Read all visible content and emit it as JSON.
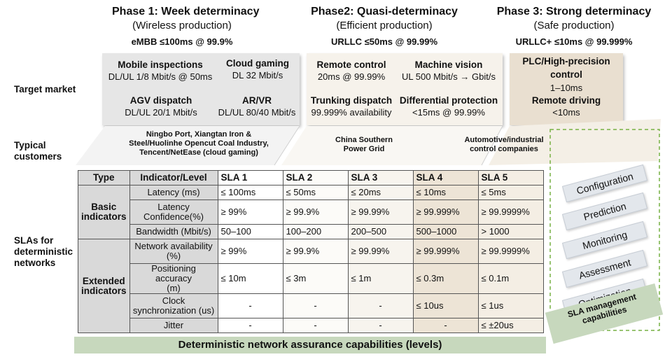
{
  "phases": [
    {
      "title": "Phase 1: Week determinacy",
      "subtitle": "(Wireless production)",
      "requirement": "eMBB ≤100ms @ 99.9%"
    },
    {
      "title": "Phase2: Quasi-determinacy",
      "subtitle": "(Efficient production)",
      "requirement": "URLLC ≤50ms @ 99.99%"
    },
    {
      "title": "Phase 3: Strong determinacy",
      "subtitle": "(Safe production)",
      "requirement": "URLLC+ ≤10ms @ 99.999%"
    }
  ],
  "row_labels": {
    "target_market": "Target market",
    "typical_customers_1": "Typical",
    "typical_customers_2": "customers",
    "slas_1": "SLAs for",
    "slas_2": "deterministic",
    "slas_3": "networks"
  },
  "markets": {
    "phase1": [
      {
        "name": "Mobile inspections",
        "value": "DL/UL 1/8 Mbit/s @ 50ms"
      },
      {
        "name": "Cloud gaming",
        "value": "DL 32 Mbit/s"
      },
      {
        "name": "AGV dispatch",
        "value": "DL/UL 20/1 Mbit/s"
      },
      {
        "name": "AR/VR",
        "value": "DL/UL 80/40 Mbit/s"
      }
    ],
    "phase2": [
      {
        "name": "Remote control",
        "value": "20ms @ 99.99%"
      },
      {
        "name": "Machine vision",
        "value": "UL 500 Mbit/s → Gbit/s"
      },
      {
        "name": "Trunking dispatch",
        "value": "99.999% availability"
      },
      {
        "name": "Differential protection",
        "value": "<15ms @ 99.99%"
      }
    ],
    "phase3": [
      {
        "name_1": "PLC/High-precision",
        "name_2": "control",
        "value": "1–10ms"
      },
      {
        "name": "Remote driving",
        "value": "<10ms"
      }
    ]
  },
  "customers": {
    "phase1_1": "Ningbo Port, Xiangtan Iron &",
    "phase1_2": "Steel/Huolinhe Opencut Coal Industry,",
    "phase1_3": "Tencent/NetEase (cloud gaming)",
    "phase2_1": "China Southern",
    "phase2_2": "Power Grid",
    "phase3_1": "Automotive/industrial",
    "phase3_2": "control companies"
  },
  "table": {
    "headers": [
      "Type",
      "Indicator/Level",
      "SLA 1",
      "SLA 2",
      "SLA 3",
      "SLA 4",
      "SLA 5"
    ],
    "basic_label_1": "Basic",
    "basic_label_2": "indicators",
    "extended_label_1": "Extended",
    "extended_label_2": "indicators",
    "rows": [
      {
        "indicator_1": "Latency (ms)",
        "indicator_2": "",
        "values": [
          "≤ 100ms",
          "≤ 50ms",
          "≤ 20ms",
          "≤ 10ms",
          "≤ 5ms"
        ]
      },
      {
        "indicator_1": "Latency",
        "indicator_2": "Confidence(%)",
        "values": [
          "≥ 99%",
          "≥ 99.9%",
          "≥ 99.99%",
          "≥ 99.999%",
          "≥ 99.9999%"
        ]
      },
      {
        "indicator_1": "Bandwidth (Mbit/s)",
        "indicator_2": "",
        "values": [
          "50–100",
          "100–200",
          "200–500",
          "500–1000",
          "> 1000"
        ]
      },
      {
        "indicator_1": "Network availability",
        "indicator_2": "(%)",
        "values": [
          "≥ 99%",
          "≥ 99.9%",
          "≥ 99.99%",
          "≥ 99.999%",
          "≥ 99.9999%"
        ]
      },
      {
        "indicator_1": "Positioning accuracy",
        "indicator_2": "(m)",
        "values": [
          "≤ 10m",
          "≤ 3m",
          "≤ 1m",
          "≤ 0.3m",
          "≤ 0.1m"
        ]
      },
      {
        "indicator_1": "Clock",
        "indicator_2": "synchronization (us)",
        "values": [
          "-",
          "-",
          "-",
          "≤ 10us",
          "≤ 1us"
        ]
      },
      {
        "indicator_1": "Jitter",
        "indicator_2": "",
        "values": [
          "-",
          "-",
          "-",
          "-",
          "≤ ±20us"
        ]
      }
    ]
  },
  "bottom_bar": "Deterministic network assurance capabilities (levels)",
  "management": {
    "items": [
      "Configuration",
      "Prediction",
      "Monitoring",
      "Assessment",
      "Optimization"
    ],
    "label_1": "SLA management",
    "label_2": "capabilities"
  },
  "colors": {
    "phase1_box": "#e6e6e6",
    "phase2_box": "#f6f2eb",
    "phase3_box": "#e9dfd0",
    "green_bar": "#c7d8bd",
    "dashed_border": "#76b043"
  }
}
